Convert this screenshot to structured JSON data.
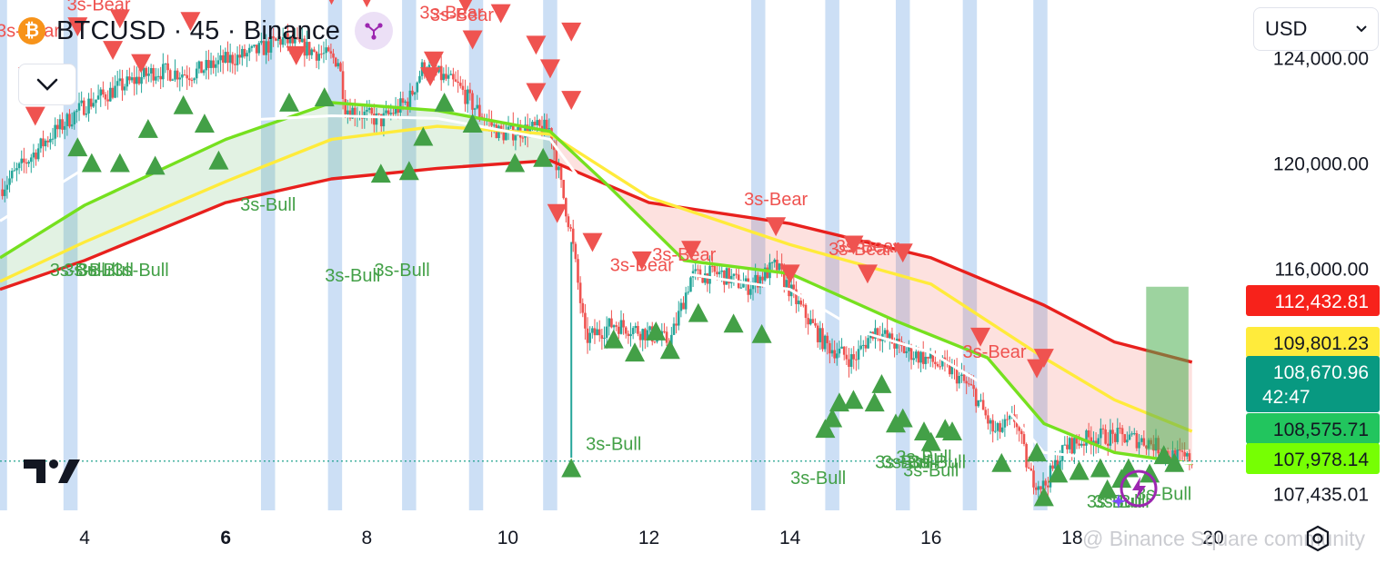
{
  "header": {
    "symbol_title": "BTCUSD · 45 · Binance",
    "btc_icon_glyph": "₿",
    "currency": "USD",
    "icons": [
      "bitcoin-icon",
      "share-icon",
      "chevron-down-icon",
      "chevron-down-icon"
    ]
  },
  "watermark": "@ Binance Square community",
  "colors": {
    "bull": "#43a047",
    "bear": "#ef5350",
    "ma_red": "#e8201d",
    "ma_yellow": "#ffeb3b",
    "ma_green": "#76e01f",
    "ma_white": "#ffffff",
    "session_band": "#c3d9f3",
    "last_price_line": "#089981"
  },
  "chart_data": {
    "type": "candlestick",
    "symbol": "BTCUSD",
    "interval": "45",
    "exchange": "Binance",
    "x_ticks": [
      "4",
      "6",
      "8",
      "10",
      "12",
      "14",
      "16",
      "18",
      "20"
    ],
    "x_tick_bold": [
      "6"
    ],
    "y_ticks": [
      "124,000.00",
      "120,000.00",
      "116,000.00",
      "107,435.01"
    ],
    "y_range": [
      106800,
      126200
    ],
    "x_range_days": [
      2.8,
      20.4
    ],
    "price_labels": [
      {
        "name": "ma-red",
        "value": "112,432.81",
        "bg": "#f7221b",
        "fg": "#ffffff"
      },
      {
        "name": "ma-yellow",
        "value": "109,801.23",
        "bg": "#ffeb3b",
        "fg": "#131722"
      },
      {
        "name": "last-price",
        "value": "108,670.96",
        "sub": "42:47",
        "bg": "#089981",
        "fg": "#ffffff"
      },
      {
        "name": "ma-green",
        "value": "108,575.71",
        "bg": "#22c55e",
        "fg": "#131722"
      },
      {
        "name": "ma-lime",
        "value": "107,978.14",
        "bg": "#76ff03",
        "fg": "#131722"
      }
    ],
    "moving_averages": [
      {
        "name": "ma-red",
        "color": "#e8201d",
        "points": [
          [
            2.8,
            115200
          ],
          [
            4,
            116300
          ],
          [
            6,
            118500
          ],
          [
            7.5,
            119400
          ],
          [
            9,
            119800
          ],
          [
            10.6,
            120100
          ],
          [
            12,
            118500
          ],
          [
            14,
            117700
          ],
          [
            16,
            116400
          ],
          [
            17.6,
            114600
          ],
          [
            18.6,
            113200
          ],
          [
            19.7,
            112433
          ]
        ]
      },
      {
        "name": "ma-yellow",
        "color": "#ffeb3b",
        "points": [
          [
            2.8,
            115500
          ],
          [
            4,
            117000
          ],
          [
            6,
            119300
          ],
          [
            7.5,
            120900
          ],
          [
            9,
            121400
          ],
          [
            10.6,
            121100
          ],
          [
            12,
            118700
          ],
          [
            14,
            116900
          ],
          [
            16,
            115400
          ],
          [
            17.6,
            112600
          ],
          [
            18.6,
            111000
          ],
          [
            19.7,
            109801
          ]
        ]
      },
      {
        "name": "ma-green",
        "color": "#76e01f",
        "points": [
          [
            2.8,
            116400
          ],
          [
            4,
            118400
          ],
          [
            6,
            120900
          ],
          [
            7.5,
            122300
          ],
          [
            9,
            122000
          ],
          [
            10.6,
            121200
          ],
          [
            11.4,
            119200
          ],
          [
            12.5,
            116300
          ],
          [
            14,
            115800
          ],
          [
            15.5,
            114000
          ],
          [
            16.8,
            112600
          ],
          [
            17.6,
            110100
          ],
          [
            18.6,
            109000
          ],
          [
            19.7,
            108576
          ]
        ]
      },
      {
        "name": "ma-white",
        "color": "#ffffff",
        "points": [
          [
            2.8,
            117800
          ],
          [
            4,
            119800
          ],
          [
            6,
            121600
          ],
          [
            7.5,
            121800
          ],
          [
            9,
            121700
          ],
          [
            10.6,
            120900
          ],
          [
            11.3,
            118400
          ],
          [
            12.5,
            115800
          ],
          [
            14,
            115200
          ],
          [
            15,
            113600
          ],
          [
            16,
            112800
          ],
          [
            16.8,
            111500
          ],
          [
            17.6,
            109000
          ],
          [
            18.6,
            108700
          ],
          [
            19.7,
            108600
          ]
        ]
      }
    ],
    "price_path": [
      [
        2.8,
        119000
      ],
      [
        3.5,
        121000
      ],
      [
        4,
        122200
      ],
      [
        4.5,
        122900
      ],
      [
        5,
        123500
      ],
      [
        5.5,
        123400
      ],
      [
        6,
        123900
      ],
      [
        6.4,
        124200
      ],
      [
        6.8,
        124700
      ],
      [
        7.2,
        124300
      ],
      [
        7.6,
        123900
      ],
      [
        7.7,
        122100
      ],
      [
        8.2,
        121600
      ],
      [
        8.6,
        122400
      ],
      [
        8.8,
        123700
      ],
      [
        9.3,
        122900
      ],
      [
        9.6,
        121900
      ],
      [
        9.9,
        121100
      ],
      [
        10.3,
        121300
      ],
      [
        10.6,
        121300
      ],
      [
        10.75,
        119200
      ],
      [
        10.9,
        117300
      ],
      [
        11.1,
        113300
      ],
      [
        11.5,
        113900
      ],
      [
        11.9,
        113600
      ],
      [
        12.3,
        113200
      ],
      [
        12.6,
        115700
      ],
      [
        13,
        115800
      ],
      [
        13.4,
        115300
      ],
      [
        13.8,
        116100
      ],
      [
        14.1,
        114700
      ],
      [
        14.5,
        113100
      ],
      [
        14.9,
        112500
      ],
      [
        15.2,
        113700
      ],
      [
        15.6,
        112900
      ],
      [
        15.9,
        112600
      ],
      [
        16.3,
        112100
      ],
      [
        16.6,
        111300
      ],
      [
        16.9,
        109700
      ],
      [
        17.2,
        110300
      ],
      [
        17.4,
        108100
      ],
      [
        17.6,
        107700
      ],
      [
        17.9,
        109200
      ],
      [
        18.3,
        109600
      ],
      [
        18.7,
        109600
      ],
      [
        19.1,
        109400
      ],
      [
        19.4,
        108900
      ],
      [
        19.7,
        108671
      ]
    ],
    "price_path_note_free": true,
    "session_bands_days": [
      [
        2.8,
        2.9
      ],
      [
        3.7,
        3.9
      ],
      [
        6.5,
        6.7
      ],
      [
        7.45,
        7.65
      ],
      [
        8.5,
        8.7
      ],
      [
        9.45,
        9.65
      ],
      [
        10.5,
        10.7
      ],
      [
        13.45,
        13.65
      ],
      [
        14.5,
        14.7
      ],
      [
        15.5,
        15.7
      ],
      [
        16.45,
        16.65
      ],
      [
        17.45,
        17.65
      ]
    ],
    "signals": {
      "bull_label": "3s-Bull",
      "bear_label": "3s-Bear",
      "bull_labels": [
        [
          3.9,
          115700
        ],
        [
          4.1,
          115700
        ],
        [
          4.3,
          115700
        ],
        [
          4.8,
          115700
        ],
        [
          6.6,
          118200
        ],
        [
          7.8,
          115500
        ],
        [
          8.5,
          115700
        ],
        [
          11.5,
          109100
        ],
        [
          14.4,
          107800
        ],
        [
          15.6,
          108400
        ],
        [
          15.7,
          108400
        ],
        [
          15.9,
          108600
        ],
        [
          16.1,
          108400
        ],
        [
          16.0,
          108100
        ],
        [
          18.6,
          106900
        ],
        [
          18.7,
          106900
        ],
        [
          19.3,
          107200
        ]
      ],
      "bear_labels": [
        [
          3.2,
          124800
        ],
        [
          4.2,
          125800
        ],
        [
          9.2,
          125500
        ],
        [
          9.3,
          126800
        ],
        [
          9.35,
          125400
        ],
        [
          11.9,
          115900
        ],
        [
          12.5,
          116300
        ],
        [
          13.8,
          118400
        ],
        [
          15.0,
          116500
        ],
        [
          15.1,
          116600
        ],
        [
          16.9,
          112600
        ]
      ],
      "bull_triangles": [
        [
          3.9,
          120600
        ],
        [
          4.1,
          120000
        ],
        [
          4.5,
          120000
        ],
        [
          4.9,
          121300
        ],
        [
          5.0,
          119900
        ],
        [
          5.4,
          122200
        ],
        [
          5.7,
          121500
        ],
        [
          5.9,
          120100
        ],
        [
          6.9,
          122300
        ],
        [
          7.4,
          122500
        ],
        [
          8.2,
          119600
        ],
        [
          8.6,
          119700
        ],
        [
          8.8,
          121000
        ],
        [
          9.1,
          122300
        ],
        [
          9.5,
          121500
        ],
        [
          10.1,
          120000
        ],
        [
          10.5,
          120200
        ],
        [
          10.9,
          108400
        ],
        [
          11.5,
          113300
        ],
        [
          11.8,
          112800
        ],
        [
          12.1,
          113600
        ],
        [
          12.3,
          112900
        ],
        [
          12.7,
          114300
        ],
        [
          13.2,
          113900
        ],
        [
          13.6,
          113500
        ],
        [
          14.5,
          109900
        ],
        [
          14.6,
          110300
        ],
        [
          14.7,
          110900
        ],
        [
          14.9,
          111000
        ],
        [
          15.2,
          110900
        ],
        [
          15.3,
          111600
        ],
        [
          15.5,
          110100
        ],
        [
          15.6,
          110300
        ],
        [
          15.9,
          109800
        ],
        [
          16.0,
          109400
        ],
        [
          16.2,
          109900
        ],
        [
          16.3,
          109800
        ],
        [
          17.0,
          108600
        ],
        [
          17.5,
          109000
        ],
        [
          17.6,
          107300
        ],
        [
          17.8,
          108200
        ],
        [
          18.1,
          108300
        ],
        [
          18.4,
          108400
        ],
        [
          18.5,
          107600
        ],
        [
          18.7,
          108000
        ],
        [
          18.8,
          108400
        ],
        [
          19.1,
          108200
        ],
        [
          19.3,
          108900
        ],
        [
          19.45,
          108600
        ]
      ],
      "bear_triangles": [
        [
          3.2,
          123300
        ],
        [
          3.3,
          121800
        ],
        [
          3.9,
          125200
        ],
        [
          4.4,
          124300
        ],
        [
          4.5,
          125500
        ],
        [
          4.8,
          123800
        ],
        [
          5.5,
          125400
        ],
        [
          6.5,
          127000
        ],
        [
          7.0,
          124100
        ],
        [
          7.5,
          126400
        ],
        [
          8.0,
          126300
        ],
        [
          8.9,
          123300
        ],
        [
          8.95,
          123900
        ],
        [
          9.4,
          126100
        ],
        [
          9.5,
          124700
        ],
        [
          9.9,
          125700
        ],
        [
          10.4,
          124500
        ],
        [
          10.9,
          125000
        ],
        [
          10.4,
          122700
        ],
        [
          10.6,
          123600
        ],
        [
          10.9,
          122400
        ],
        [
          10.7,
          118100
        ],
        [
          11.2,
          117000
        ],
        [
          11.9,
          116300
        ],
        [
          12.6,
          116700
        ],
        [
          13.8,
          117600
        ],
        [
          14.0,
          115800
        ],
        [
          14.9,
          116900
        ],
        [
          15.1,
          115800
        ],
        [
          15.6,
          116600
        ],
        [
          16.7,
          113400
        ],
        [
          17.5,
          112200
        ],
        [
          17.6,
          112600
        ]
      ]
    },
    "highlight_box": {
      "x0": 19.05,
      "x1": 19.65,
      "y0": 109100,
      "y1": 115300
    }
  }
}
